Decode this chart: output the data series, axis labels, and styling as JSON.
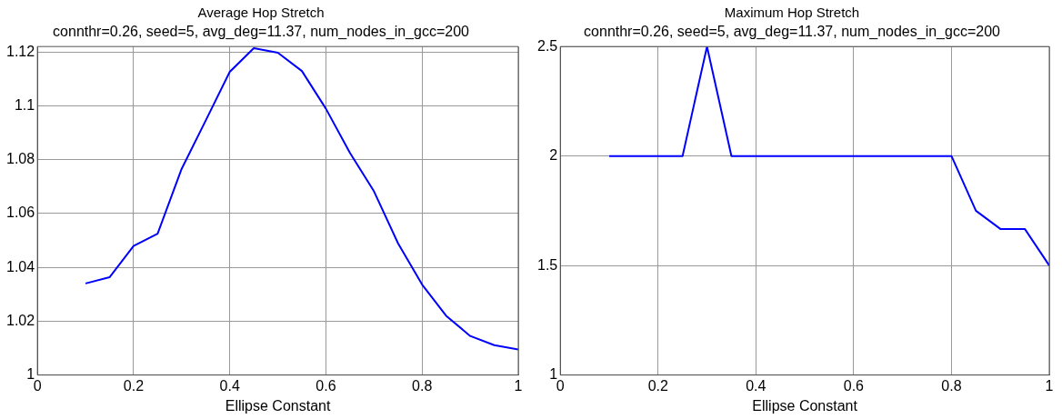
{
  "chart_data": [
    {
      "type": "line",
      "title": "Average Hop Stretch",
      "subtitle": "connthr=0.26, seed=5, avg_deg=11.37, num_nodes_in_gcc=200",
      "xlabel": "Ellipse Constant",
      "x": [
        0.1,
        0.15,
        0.2,
        0.25,
        0.3,
        0.35,
        0.4,
        0.45,
        0.5,
        0.55,
        0.6,
        0.65,
        0.7,
        0.75,
        0.8,
        0.85,
        0.9,
        0.95,
        1.0
      ],
      "series": [
        {
          "color": "#0000ff",
          "values": [
            1.034,
            1.0363,
            1.0479,
            1.0525,
            1.0766,
            1.0945,
            1.1126,
            1.1214,
            1.1197,
            1.1129,
            1.0989,
            1.0825,
            1.0682,
            1.0489,
            1.0336,
            1.022,
            1.0145,
            1.0111,
            1.0095
          ]
        }
      ],
      "xlim": [
        0,
        1
      ],
      "xticks": [
        0,
        0.2,
        0.4,
        0.6,
        0.8,
        1
      ],
      "ylim": [
        1,
        1.122
      ],
      "yticks": [
        1,
        1.02,
        1.04,
        1.06,
        1.08,
        1.1,
        1.12
      ],
      "grid": true,
      "line_style": "solid"
    },
    {
      "type": "line",
      "title": "Maximum Hop Stretch",
      "subtitle": "connthr=0.26, seed=5, avg_deg=11.37, num_nodes_in_gcc=200",
      "xlabel": "Ellipse Constant",
      "x": [
        0.1,
        0.15,
        0.2,
        0.25,
        0.3,
        0.35,
        0.4,
        0.45,
        0.5,
        0.55,
        0.6,
        0.65,
        0.7,
        0.75,
        0.8,
        0.85,
        0.9,
        0.95,
        1.0
      ],
      "series": [
        {
          "color": "#0000ff",
          "values": [
            2,
            2,
            2,
            2,
            2.5,
            2,
            2,
            2,
            2,
            2,
            2,
            2,
            2,
            2,
            2,
            1.75,
            1.667,
            1.667,
            1.5
          ]
        }
      ],
      "xlim": [
        0,
        1
      ],
      "xticks": [
        0,
        0.2,
        0.4,
        0.6,
        0.8,
        1
      ],
      "ylim": [
        1,
        2.5
      ],
      "yticks": [
        1,
        1.5,
        2,
        2.5
      ],
      "grid": true,
      "line_style": "solid"
    }
  ]
}
